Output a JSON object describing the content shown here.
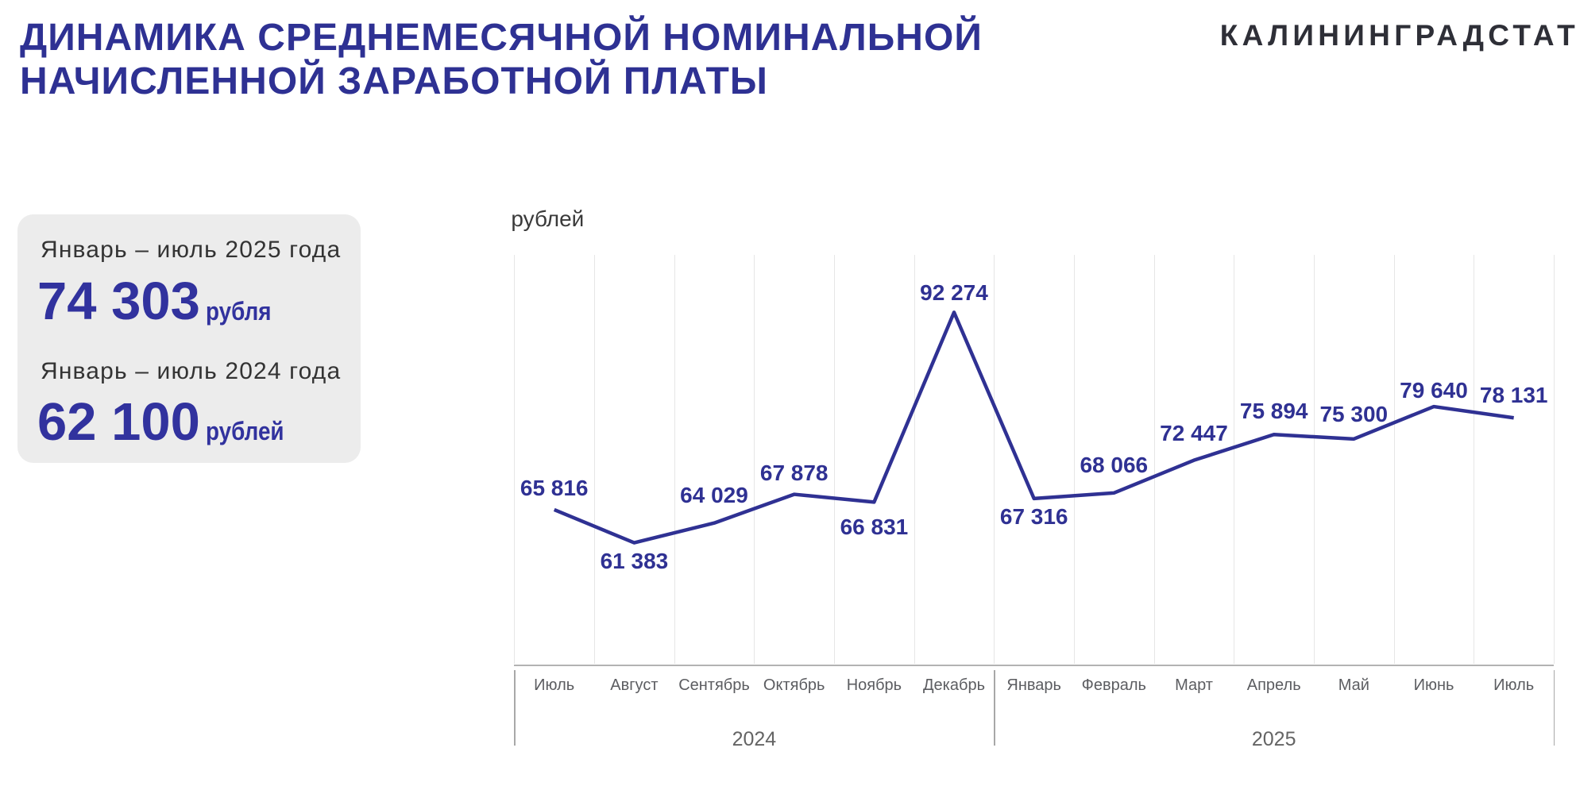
{
  "header": {
    "title_line1": "ДИНАМИКА СРЕДНЕМЕСЯЧНОЙ НОМИНАЛЬНОЙ",
    "title_line2": "НАЧИСЛЕННОЙ ЗАРАБОТНОЙ ПЛАТЫ",
    "logo": "КАЛИНИНГРАДСТАТ"
  },
  "summary_card": {
    "period_2025": {
      "label": "Январь – июль 2025 года",
      "value": "74 303",
      "unit": "рубля"
    },
    "period_2024": {
      "label": "Январь – июль 2024 года",
      "value": "62 100",
      "unit": "рублей"
    }
  },
  "chart_data": {
    "type": "line",
    "ylabel": "рублей",
    "categories": [
      "Июль",
      "Август",
      "Сентябрь",
      "Октябрь",
      "Ноябрь",
      "Декабрь",
      "Январь",
      "Февраль",
      "Март",
      "Апрель",
      "Май",
      "Июнь",
      "Июль"
    ],
    "values": [
      65816,
      61383,
      64029,
      67878,
      66831,
      92274,
      67316,
      68066,
      72447,
      75894,
      75300,
      79640,
      78131
    ],
    "data_labels": [
      "65 816",
      "61 383",
      "64 029",
      "67 878",
      "66 831",
      "92 274",
      "67 316",
      "68 066",
      "72 447",
      "75 894",
      "75 300",
      "79 640",
      "78 131"
    ],
    "label_positions": [
      "above",
      "below",
      "above",
      "above",
      "below",
      "above",
      "below",
      "above",
      "above",
      "above",
      "above",
      "above",
      "above"
    ],
    "year_groups": [
      {
        "label": "2024",
        "months": 6
      },
      {
        "label": "2025",
        "months": 7
      }
    ],
    "ylim": [
      45000,
      100000
    ],
    "grid": "vertical-only",
    "legend": "none",
    "line_color": "#2f3193"
  }
}
